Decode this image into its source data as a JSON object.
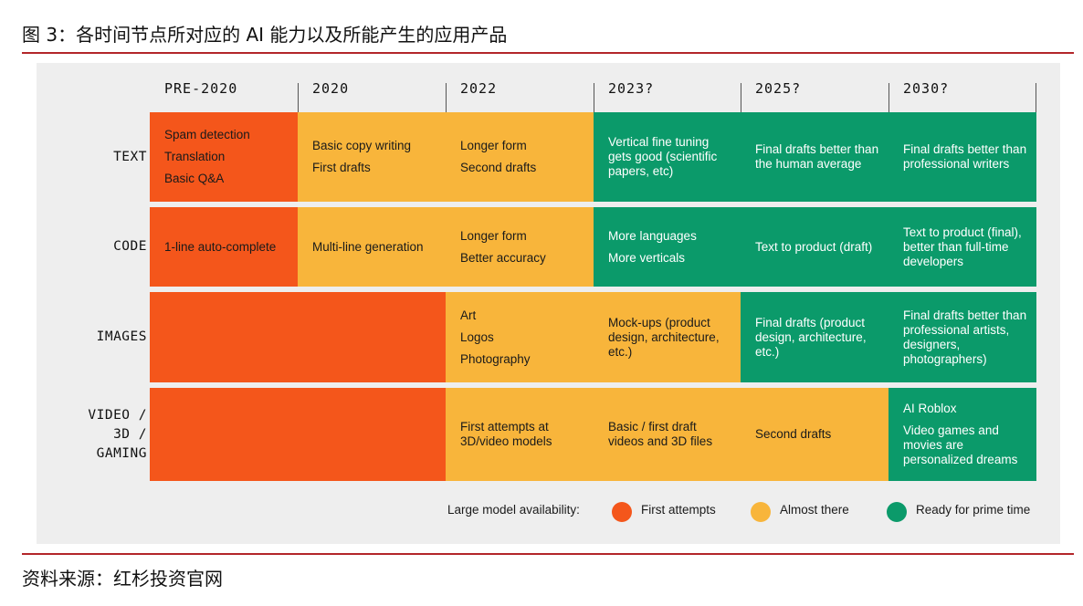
{
  "figure": {
    "title": "图 3：各时间节点所对应的 AI 能力以及所能产生的应用产品",
    "source": "资料来源：红杉投资官网"
  },
  "colors": {
    "first_attempts": "#f4561b",
    "almost_there": "#f8b53b",
    "ready": "#0b9a6a",
    "panel_bg": "#eeeeee",
    "rule": "#b3262a"
  },
  "columns": [
    "PRE-2020",
    "2020",
    "2022",
    "2023?",
    "2025?",
    "2030?"
  ],
  "rows": [
    {
      "label": "TEXT",
      "cells": [
        {
          "status": "first_attempts",
          "lines": [
            "Spam detection",
            "Translation",
            "Basic Q&A"
          ]
        },
        {
          "status": "almost_there",
          "lines": [
            "Basic copy writing",
            "First drafts"
          ]
        },
        {
          "status": "almost_there",
          "lines": [
            "Longer form",
            "Second drafts"
          ]
        },
        {
          "status": "ready",
          "lines": [
            "Vertical fine tuning gets good (scientific papers, etc)"
          ]
        },
        {
          "status": "ready",
          "lines": [
            "Final drafts better than the human average"
          ]
        },
        {
          "status": "ready",
          "lines": [
            "Final drafts better than professional writers"
          ]
        }
      ]
    },
    {
      "label": "CODE",
      "cells": [
        {
          "status": "first_attempts",
          "lines": [
            "1-line auto-complete"
          ]
        },
        {
          "status": "almost_there",
          "lines": [
            "Multi-line generation"
          ]
        },
        {
          "status": "almost_there",
          "lines": [
            "Longer form",
            "Better accuracy"
          ]
        },
        {
          "status": "ready",
          "lines": [
            "More languages",
            "More verticals"
          ]
        },
        {
          "status": "ready",
          "lines": [
            "Text to product (draft)"
          ]
        },
        {
          "status": "ready",
          "lines": [
            "Text to product (final), better than full-time developers"
          ]
        }
      ]
    },
    {
      "label": "IMAGES",
      "cells": [
        {
          "status": "first_attempts",
          "lines": []
        },
        {
          "status": "first_attempts",
          "lines": []
        },
        {
          "status": "almost_there",
          "lines": [
            "Art",
            "Logos",
            "Photography"
          ]
        },
        {
          "status": "almost_there",
          "lines": [
            "Mock-ups (product design, architecture, etc.)"
          ]
        },
        {
          "status": "ready",
          "lines": [
            "Final drafts (product design, architecture, etc.)"
          ]
        },
        {
          "status": "ready",
          "lines": [
            "Final drafts better than professional artists, designers, photographers)"
          ]
        }
      ]
    },
    {
      "label": "VIDEO /\n3D /\nGAMING",
      "cells": [
        {
          "status": "first_attempts",
          "lines": []
        },
        {
          "status": "first_attempts",
          "lines": []
        },
        {
          "status": "almost_there",
          "lines": [
            "First attempts at 3D/video models"
          ]
        },
        {
          "status": "almost_there",
          "lines": [
            "Basic / first draft videos and 3D files"
          ]
        },
        {
          "status": "almost_there",
          "lines": [
            "Second drafts"
          ]
        },
        {
          "status": "ready",
          "lines": [
            "AI Roblox",
            "Video games and movies are personalized dreams"
          ]
        }
      ]
    }
  ],
  "legend": {
    "title": "Large model availability:",
    "items": [
      {
        "status": "first_attempts",
        "label": "First attempts"
      },
      {
        "status": "almost_there",
        "label": "Almost there"
      },
      {
        "status": "ready",
        "label": "Ready for prime time"
      }
    ]
  }
}
